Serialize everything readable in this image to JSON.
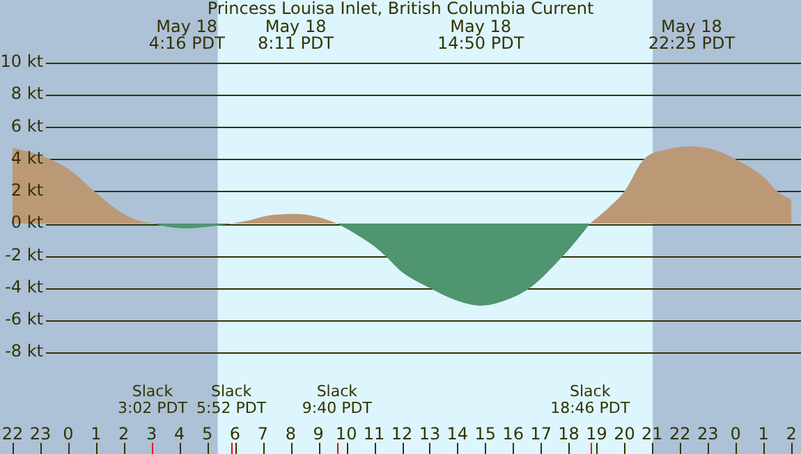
{
  "chart_data": {
    "type": "area",
    "title": "Princess Louisa Inlet, British Columbia Current",
    "series": [
      {
        "color": "#bb9977",
        "x": [
          "--05-17T22:00",
          "--05-17T22:30",
          "--05-17T23:21",
          "--05-18T00:00",
          "--05-18T00:57",
          "--05-18T01:30",
          "--05-18T02:00",
          "--05-18T02:30",
          "--05-18T03:02",
          "--05-18T04:16",
          "--05-18T05:52",
          "--05-18T06:30",
          "--05-18T07:12",
          "--05-18T08:11",
          "--05-18T09:00",
          "--05-18T09:40",
          "--05-18T14:50",
          "--05-18T18:46",
          "--05-18T19:30",
          "--05-18T20:00",
          "--05-18T20:42",
          "--05-18T21:30",
          "--05-18T22:25",
          "--05-18T23:12",
          "--05-19T00:00",
          "--05-19T01:00",
          "--05-19T01:30",
          "--05-19T02:00"
        ],
        "values": [
          4.7,
          4.5,
          4.0,
          3.4,
          2.0,
          1.2,
          0.6,
          0.2,
          0,
          null,
          0,
          0.2,
          0.5,
          0.6,
          0.4,
          0,
          null,
          0,
          1.1,
          2.0,
          4.0,
          4.6,
          4.8,
          4.6,
          4.0,
          2.9,
          2.0,
          1.5
        ]
      },
      {
        "color": "#4f9570",
        "x": [
          "--05-18T03:02",
          "--05-18T03:36",
          "--05-18T04:16",
          "--05-18T05:00",
          "--05-18T05:52",
          "--05-18T08:11",
          "--05-18T09:40",
          "--05-18T10:12",
          "--05-18T11:00",
          "--05-18T11:24",
          "--05-18T12:00",
          "--05-18T13:00",
          "--05-18T14:00",
          "--05-18T14:50",
          "--05-18T15:30",
          "--05-18T16:36",
          "--05-18T17:48",
          "--05-18T18:18",
          "--05-18T18:46"
        ],
        "values": [
          0,
          -0.2,
          -0.3,
          -0.2,
          0,
          null,
          0,
          -0.5,
          -1.4,
          -2.0,
          -3.0,
          -4.0,
          -4.8,
          -5.1,
          -4.9,
          -4.0,
          -2.0,
          -1.0,
          0
        ]
      }
    ],
    "xlim": [
      "--05-17T22:00",
      "--05-19T02:00"
    ],
    "xticks": [
      {
        "value": "--05-17T22:00",
        "label": "22"
      },
      {
        "value": "--05-17T23:00",
        "label": "23"
      },
      {
        "value": "--05-18T00:00",
        "label": "0"
      },
      {
        "value": "--05-18T01:00",
        "label": "1"
      },
      {
        "value": "--05-18T02:00",
        "label": "2"
      },
      {
        "value": "--05-18T03:00",
        "label": "3"
      },
      {
        "value": "--05-18T04:00",
        "label": "4"
      },
      {
        "value": "--05-18T05:00",
        "label": "5"
      },
      {
        "value": "--05-18T06:00",
        "label": "6"
      },
      {
        "value": "--05-18T07:00",
        "label": "7"
      },
      {
        "value": "--05-18T08:00",
        "label": "8"
      },
      {
        "value": "--05-18T09:00",
        "label": "9"
      },
      {
        "value": "--05-18T10:00",
        "label": "10"
      },
      {
        "value": "--05-18T11:00",
        "label": "11"
      },
      {
        "value": "--05-18T12:00",
        "label": "12"
      },
      {
        "value": "--05-18T13:00",
        "label": "13"
      },
      {
        "value": "--05-18T14:00",
        "label": "14"
      },
      {
        "value": "--05-18T15:00",
        "label": "15"
      },
      {
        "value": "--05-18T16:00",
        "label": "16"
      },
      {
        "value": "--05-18T17:00",
        "label": "17"
      },
      {
        "value": "--05-18T18:00",
        "label": "18"
      },
      {
        "value": "--05-18T19:00",
        "label": "19"
      },
      {
        "value": "--05-18T20:00",
        "label": "20"
      },
      {
        "value": "--05-18T21:00",
        "label": "21"
      },
      {
        "value": "--05-18T22:00",
        "label": "22"
      },
      {
        "value": "--05-18T23:00",
        "label": "23"
      },
      {
        "value": "--05-19T00:00",
        "label": "0"
      },
      {
        "value": "--05-19T01:00",
        "label": "1"
      },
      {
        "value": "--05-19T02:00",
        "label": "2"
      }
    ],
    "ylim": [
      -8,
      10
    ],
    "yticks": [
      {
        "value": -8,
        "label": "-8 kt"
      },
      {
        "value": -6,
        "label": "-6 kt"
      },
      {
        "value": -4,
        "label": "-4 kt"
      },
      {
        "value": -2,
        "label": "-2 kt"
      },
      {
        "value": 0,
        "label": "0 kt"
      },
      {
        "value": 2,
        "label": "2 kt"
      },
      {
        "value": 4,
        "label": "4 kt"
      },
      {
        "value": 6,
        "label": "6 kt"
      },
      {
        "value": 8,
        "label": "8 kt"
      },
      {
        "value": 10,
        "label": "10 kt"
      }
    ],
    "grid": "y",
    "legend": false,
    "bands": [
      {
        "axis": "x",
        "from": "--05-17T22:00",
        "to": "--05-18T05:23",
        "color": "#adc1d7"
      },
      {
        "axis": "x",
        "from": "--05-18T05:23",
        "to": "--05-18T21:01",
        "color": "#ddf5fc"
      },
      {
        "axis": "x",
        "from": "--05-18T21:01",
        "to": "--05-19T02:00",
        "color": "#adc1d7"
      }
    ],
    "annotations": [
      "May 18\n4:16 PDT",
      "May 18\n8:11 PDT",
      "May 18\n14:50 PDT",
      "May 18\n22:25 PDT",
      "Slack\n3:02 PDT",
      "Slack\n5:52 PDT",
      "Slack\n9:40 PDT",
      "Slack\n18:46 PDT"
    ]
  }
}
